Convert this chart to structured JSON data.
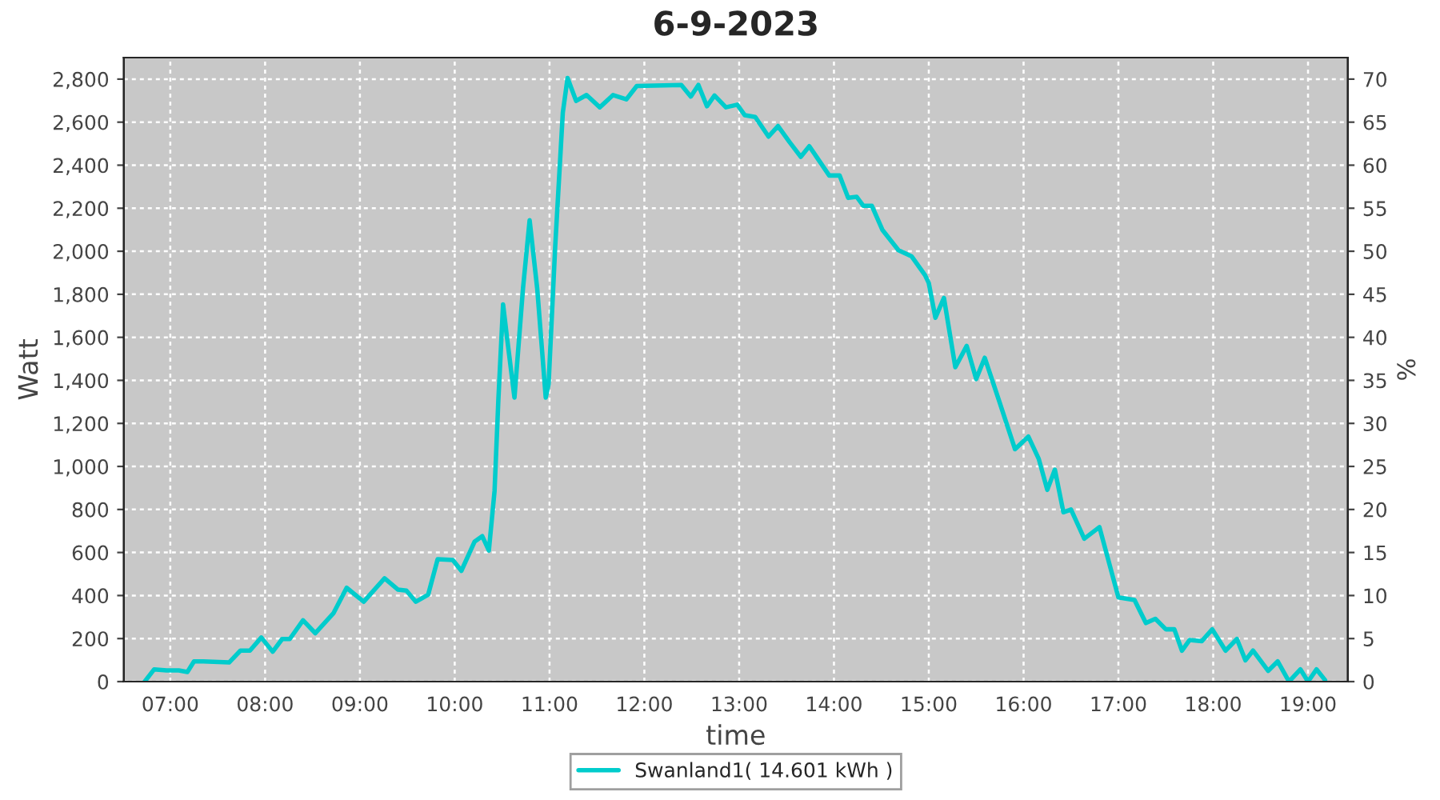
{
  "chart_data": {
    "type": "line",
    "title": "6-9-2023",
    "xlabel": "time",
    "ylabel": "Watt",
    "y2label": "%",
    "x": [
      6.73,
      6.83,
      6.96,
      7.09,
      7.18,
      7.25,
      7.34,
      7.62,
      7.74,
      7.84,
      7.96,
      8.08,
      8.18,
      8.26,
      8.4,
      8.53,
      8.72,
      8.86,
      9.04,
      9.26,
      9.4,
      9.49,
      9.59,
      9.72,
      9.82,
      9.98,
      10.07,
      10.21,
      10.29,
      10.36,
      10.42,
      10.46,
      10.51,
      10.55,
      10.63,
      10.72,
      10.79,
      10.87,
      10.96,
      10.99,
      11.06,
      11.14,
      11.19,
      11.28,
      11.39,
      11.53,
      11.67,
      11.81,
      11.92,
      12.39,
      12.49,
      12.57,
      12.66,
      12.74,
      12.86,
      12.98,
      13.06,
      13.17,
      13.31,
      13.41,
      13.53,
      13.65,
      13.74,
      13.95,
      14.06,
      14.15,
      14.24,
      14.31,
      14.4,
      14.51,
      14.68,
      14.82,
      14.96,
      15.0,
      15.07,
      15.16,
      15.28,
      15.4,
      15.5,
      15.59,
      15.74,
      15.91,
      16.05,
      16.16,
      16.25,
      16.33,
      16.42,
      16.5,
      16.64,
      16.8,
      17.0,
      17.17,
      17.29,
      17.39,
      17.5,
      17.59,
      17.67,
      17.75,
      17.88,
      17.99,
      18.13,
      18.25,
      18.34,
      18.42,
      18.58,
      18.68,
      18.8,
      18.92,
      19.0,
      19.09,
      19.18
    ],
    "series": [
      {
        "name": "Swanland1( 14.601 kWh )",
        "color": "#00cccc",
        "values": [
          0,
          57,
          52,
          52,
          45,
          94,
          94,
          89,
          144,
          144,
          205,
          139,
          198,
          198,
          285,
          225,
          317,
          436,
          371,
          480,
          428,
          423,
          371,
          404,
          569,
          565,
          515,
          651,
          676,
          609,
          886,
          1307,
          1753,
          1604,
          1320,
          1827,
          2144,
          1827,
          1320,
          1382,
          2025,
          2644,
          2805,
          2699,
          2726,
          2669,
          2726,
          2706,
          2768,
          2773,
          2719,
          2773,
          2674,
          2724,
          2669,
          2681,
          2632,
          2624,
          2533,
          2582,
          2508,
          2439,
          2488,
          2352,
          2352,
          2248,
          2253,
          2211,
          2211,
          2100,
          2005,
          1976,
          1889,
          1852,
          1691,
          1783,
          1461,
          1560,
          1406,
          1505,
          1307,
          1080,
          1139,
          1035,
          891,
          985,
          787,
          800,
          664,
          718,
          391,
          379,
          272,
          292,
          243,
          243,
          144,
          193,
          188,
          243,
          144,
          198,
          99,
          144,
          50,
          94,
          0,
          57,
          0,
          57,
          7
        ]
      }
    ],
    "xlim": [
      6.51,
      19.42
    ],
    "xticks": [
      {
        "value": 7,
        "label": "07:00"
      },
      {
        "value": 8,
        "label": "08:00"
      },
      {
        "value": 9,
        "label": "09:00"
      },
      {
        "value": 10,
        "label": "10:00"
      },
      {
        "value": 11,
        "label": "11:00"
      },
      {
        "value": 12,
        "label": "12:00"
      },
      {
        "value": 13,
        "label": "13:00"
      },
      {
        "value": 14,
        "label": "14:00"
      },
      {
        "value": 15,
        "label": "15:00"
      },
      {
        "value": 16,
        "label": "16:00"
      },
      {
        "value": 17,
        "label": "17:00"
      },
      {
        "value": 18,
        "label": "18:00"
      },
      {
        "value": 19,
        "label": "19:00"
      }
    ],
    "ylim": [
      0,
      2900
    ],
    "yticks": [
      0,
      200,
      400,
      600,
      800,
      {
        "value": 1000,
        "label": "1,000"
      },
      {
        "value": 1200,
        "label": "1,200"
      },
      {
        "value": 1400,
        "label": "1,400"
      },
      {
        "value": 1600,
        "label": "1,600"
      },
      {
        "value": 1800,
        "label": "1,800"
      },
      {
        "value": 2000,
        "label": "2,000"
      },
      {
        "value": 2200,
        "label": "2,200"
      },
      {
        "value": 2400,
        "label": "2,400"
      },
      {
        "value": 2600,
        "label": "2,600"
      },
      {
        "value": 2800,
        "label": "2,800"
      }
    ],
    "y2lim": [
      0,
      72.5
    ],
    "y2ticks": [
      0,
      5,
      10,
      15,
      20,
      25,
      30,
      35,
      40,
      45,
      50,
      55,
      60,
      65,
      70
    ],
    "grid": true,
    "legend": "bottom",
    "marker": "none",
    "line_style": "solid"
  }
}
